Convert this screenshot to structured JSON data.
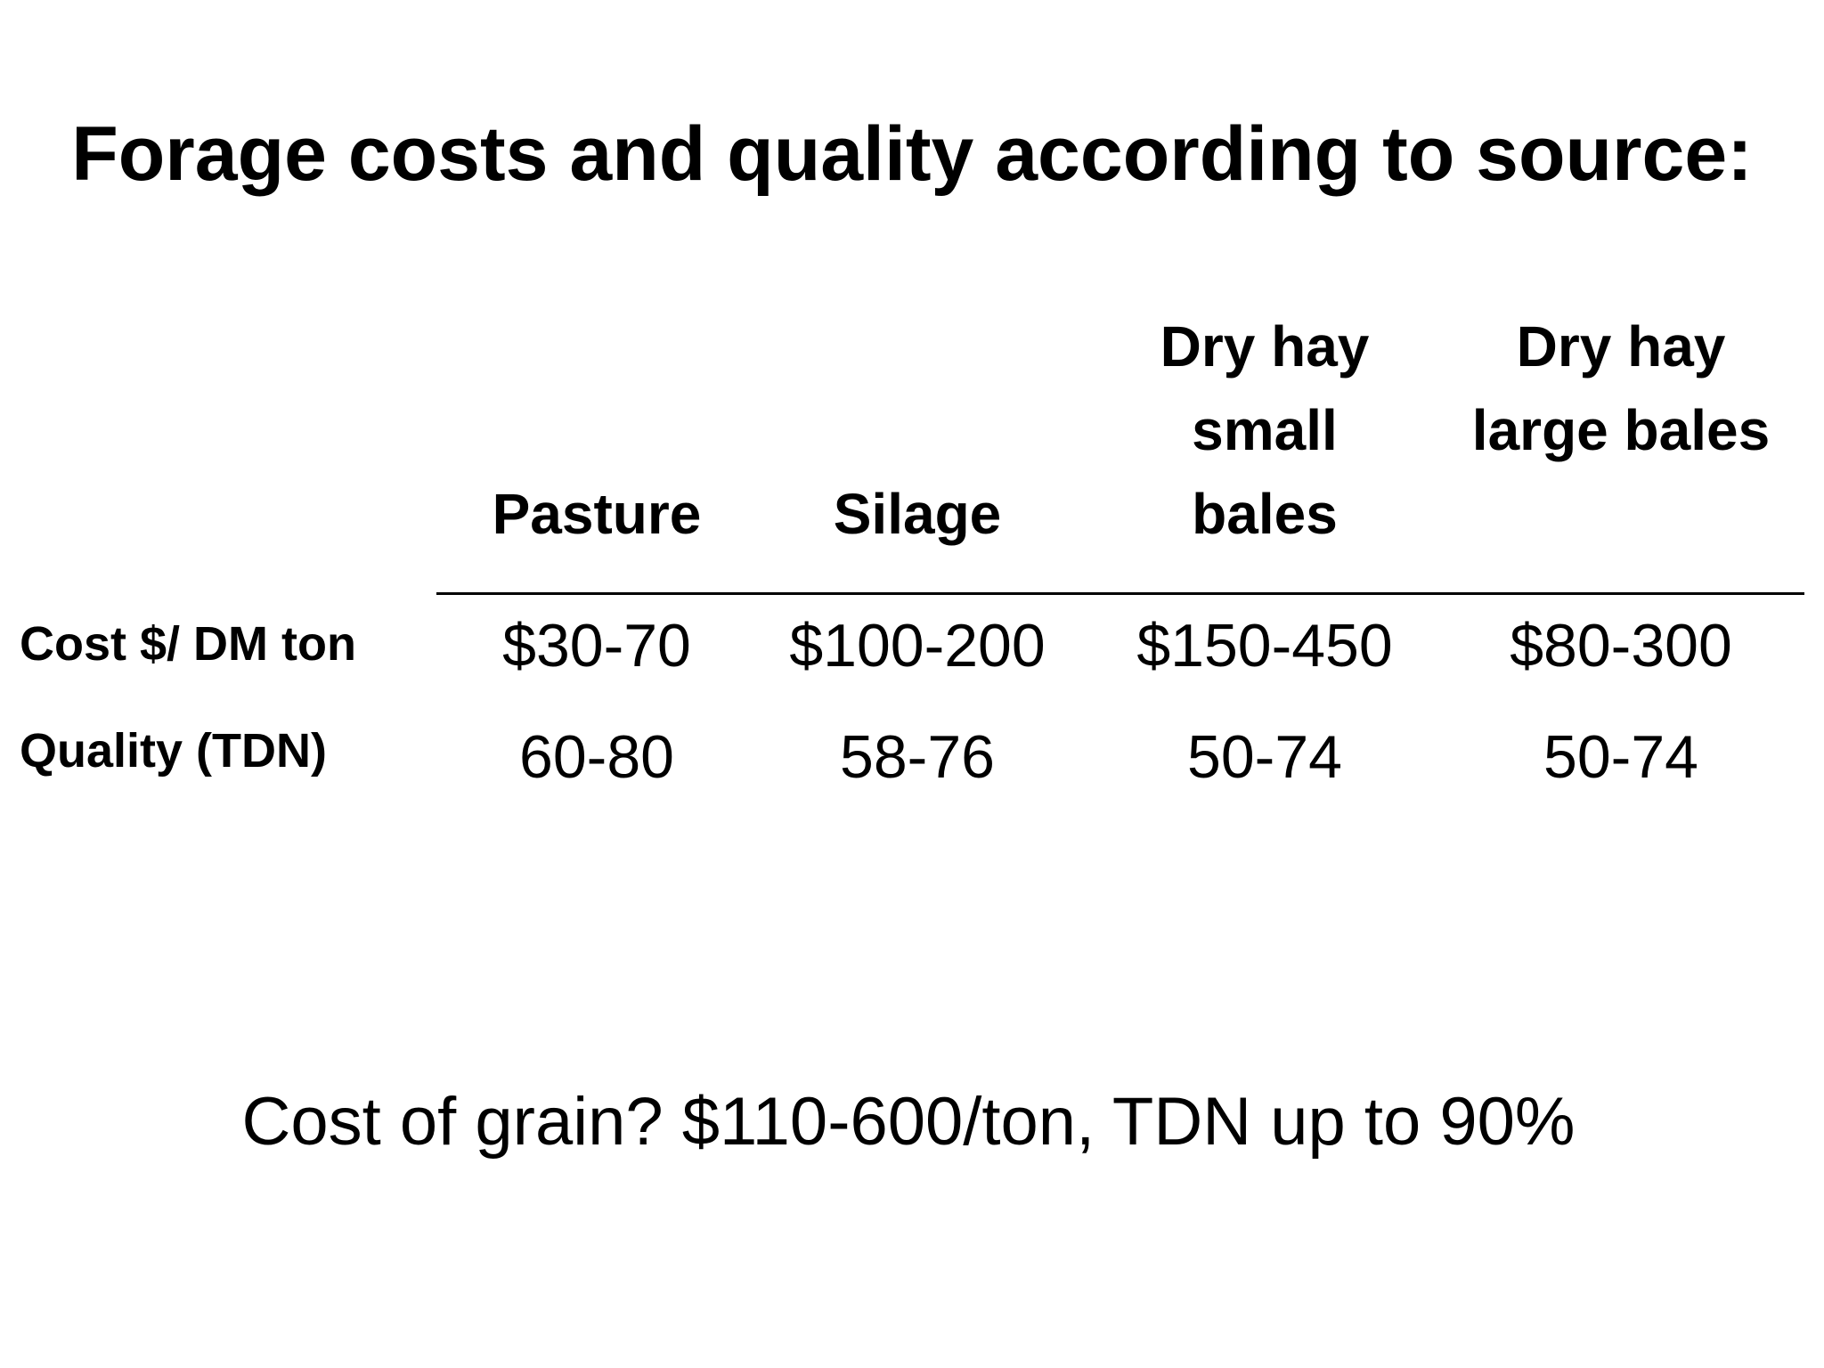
{
  "slide": {
    "title": "Forage costs and quality according to source:",
    "footer": "Cost of grain? $110-600/ton, TDN up to 90%"
  },
  "table": {
    "columns": [
      {
        "lines": [
          "Pasture"
        ]
      },
      {
        "lines": [
          "Silage"
        ]
      },
      {
        "lines": [
          "Dry hay",
          "small",
          "bales"
        ]
      },
      {
        "lines": [
          "Dry hay",
          "large bales"
        ]
      }
    ],
    "rows": [
      {
        "label": "Cost $/ DM ton",
        "values": [
          "$30-70",
          "$100-200",
          "$150-450",
          "$80-300"
        ]
      },
      {
        "label": "Quality (TDN)",
        "values": [
          "60-80",
          "58-76",
          "50-74",
          "50-74"
        ]
      }
    ]
  }
}
